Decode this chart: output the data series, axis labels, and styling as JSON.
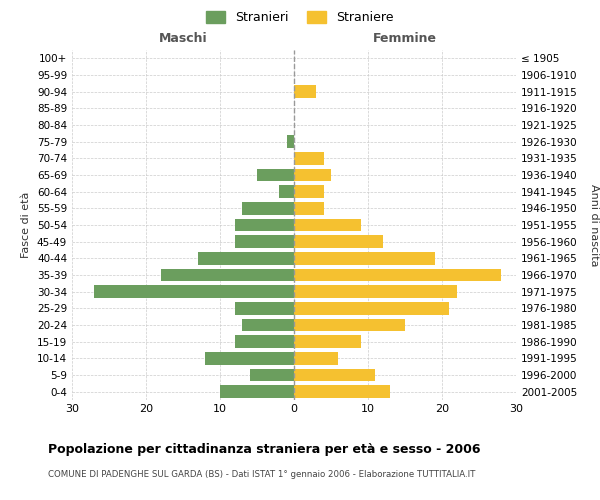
{
  "age_groups": [
    "100+",
    "95-99",
    "90-94",
    "85-89",
    "80-84",
    "75-79",
    "70-74",
    "65-69",
    "60-64",
    "55-59",
    "50-54",
    "45-49",
    "40-44",
    "35-39",
    "30-34",
    "25-29",
    "20-24",
    "15-19",
    "10-14",
    "5-9",
    "0-4"
  ],
  "birth_years": [
    "≤ 1905",
    "1906-1910",
    "1911-1915",
    "1916-1920",
    "1921-1925",
    "1926-1930",
    "1931-1935",
    "1936-1940",
    "1941-1945",
    "1946-1950",
    "1951-1955",
    "1956-1960",
    "1961-1965",
    "1966-1970",
    "1971-1975",
    "1976-1980",
    "1981-1985",
    "1986-1990",
    "1991-1995",
    "1996-2000",
    "2001-2005"
  ],
  "males": [
    0,
    0,
    0,
    0,
    0,
    1,
    0,
    5,
    2,
    7,
    8,
    8,
    13,
    18,
    27,
    8,
    7,
    8,
    12,
    6,
    10
  ],
  "females": [
    0,
    0,
    3,
    0,
    0,
    0,
    4,
    5,
    4,
    4,
    9,
    12,
    19,
    28,
    22,
    21,
    15,
    9,
    6,
    11,
    13
  ],
  "male_color": "#6b9e5e",
  "female_color": "#f5c130",
  "grid_color": "#cccccc",
  "title": "Popolazione per cittadinanza straniera per età e sesso - 2006",
  "subtitle": "COMUNE DI PADENGHE SUL GARDA (BS) - Dati ISTAT 1° gennaio 2006 - Elaborazione TUTTITALIA.IT",
  "ylabel_left": "Fasce di età",
  "ylabel_right": "Anni di nascita",
  "xlabel_left": "Maschi",
  "xlabel_right": "Femmine",
  "legend_male": "Stranieri",
  "legend_female": "Straniere",
  "xlim": 30
}
